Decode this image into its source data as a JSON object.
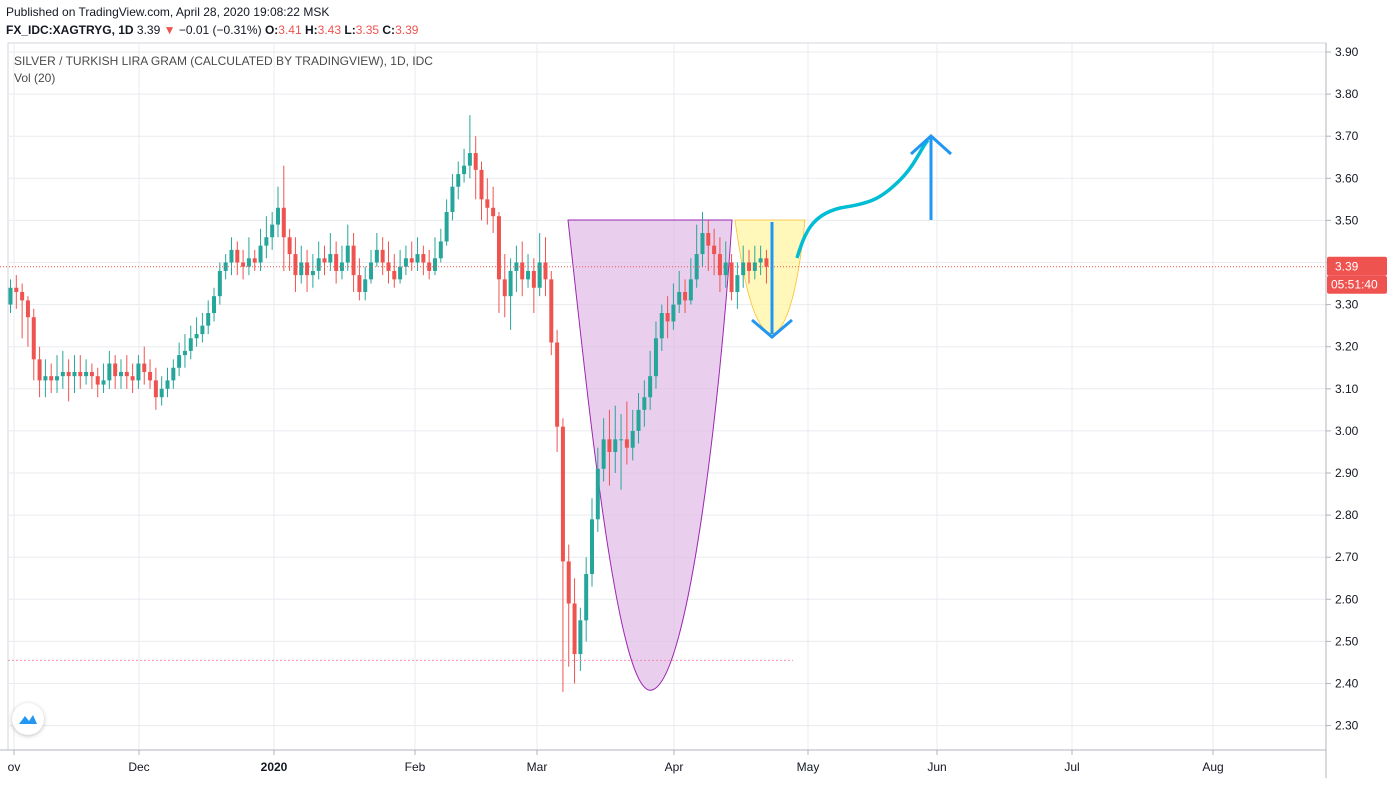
{
  "header": {
    "published": "Published on TradingView.com, April 28, 2020 19:08:22 MSK",
    "symbol": "FX_IDC:XAGTRYG, 1D",
    "last": "3.39",
    "change_arrow": "▼",
    "change": "−0.01 (−0.31%)",
    "o_label": "O:",
    "o_value": "3.41",
    "h_label": "H:",
    "h_value": "3.43",
    "l_label": "L:",
    "l_value": "3.35",
    "c_label": "C:",
    "c_value": "3.39"
  },
  "legend": {
    "title": "SILVER / TURKISH LIRA GRAM (CALCULATED BY TRADINGVIEW), 1D, IDC",
    "indicator": "Vol (20)"
  },
  "colors": {
    "up": "#26a69a",
    "down": "#ef5350",
    "grid": "#e8ebef",
    "cup_fill": "#e1bee7",
    "cup_stroke": "#9c27b0",
    "handle_fill": "#fff59d",
    "arrow_blue": "#2196f3",
    "projection": "#00bcd4",
    "support_line": "#f48fb1",
    "price_line": "#ef5350"
  },
  "chart_data": {
    "type": "candlestick",
    "ylim": [
      2.25,
      3.92
    ],
    "y_ticks": [
      "3.90",
      "3.80",
      "3.70",
      "3.60",
      "3.50",
      "3.40",
      "3.30",
      "3.20",
      "3.10",
      "3.00",
      "2.90",
      "2.80",
      "2.70",
      "2.60",
      "2.50",
      "2.40",
      "2.30"
    ],
    "x_labels": [
      "ov",
      "Dec",
      "2020",
      "Feb",
      "Mar",
      "Apr",
      "May",
      "Jun",
      "Jul",
      "Aug"
    ],
    "last_price_label": "3.39",
    "countdown_label": "05:51:40",
    "last_price": 3.39,
    "support_level": 2.455,
    "candles": [
      [
        3.3,
        3.34,
        3.36,
        3.28
      ],
      [
        3.34,
        3.33,
        3.37,
        3.29
      ],
      [
        3.33,
        3.31,
        3.35,
        3.22
      ],
      [
        3.31,
        3.27,
        3.32,
        3.2
      ],
      [
        3.27,
        3.17,
        3.29,
        3.12
      ],
      [
        3.17,
        3.12,
        3.2,
        3.08
      ],
      [
        3.12,
        3.13,
        3.17,
        3.08
      ],
      [
        3.13,
        3.12,
        3.16,
        3.09
      ],
      [
        3.12,
        3.13,
        3.18,
        3.09
      ],
      [
        3.13,
        3.14,
        3.19,
        3.1
      ],
      [
        3.14,
        3.13,
        3.17,
        3.07
      ],
      [
        3.13,
        3.14,
        3.18,
        3.09
      ],
      [
        3.14,
        3.13,
        3.18,
        3.1
      ],
      [
        3.13,
        3.14,
        3.17,
        3.11
      ],
      [
        3.14,
        3.13,
        3.16,
        3.1
      ],
      [
        3.13,
        3.11,
        3.15,
        3.08
      ],
      [
        3.11,
        3.12,
        3.16,
        3.09
      ],
      [
        3.12,
        3.16,
        3.19,
        3.1
      ],
      [
        3.16,
        3.13,
        3.18,
        3.1
      ],
      [
        3.13,
        3.14,
        3.17,
        3.1
      ],
      [
        3.14,
        3.13,
        3.18,
        3.1
      ],
      [
        3.13,
        3.12,
        3.16,
        3.09
      ],
      [
        3.12,
        3.16,
        3.18,
        3.1
      ],
      [
        3.16,
        3.14,
        3.2,
        3.11
      ],
      [
        3.14,
        3.12,
        3.17,
        3.1
      ],
      [
        3.12,
        3.08,
        3.15,
        3.05
      ],
      [
        3.08,
        3.1,
        3.13,
        3.06
      ],
      [
        3.1,
        3.12,
        3.15,
        3.08
      ],
      [
        3.12,
        3.15,
        3.17,
        3.1
      ],
      [
        3.15,
        3.18,
        3.21,
        3.13
      ],
      [
        3.18,
        3.19,
        3.23,
        3.15
      ],
      [
        3.19,
        3.22,
        3.25,
        3.17
      ],
      [
        3.22,
        3.23,
        3.27,
        3.2
      ],
      [
        3.23,
        3.25,
        3.28,
        3.21
      ],
      [
        3.25,
        3.28,
        3.31,
        3.23
      ],
      [
        3.28,
        3.32,
        3.34,
        3.26
      ],
      [
        3.32,
        3.38,
        3.4,
        3.3
      ],
      [
        3.38,
        3.4,
        3.42,
        3.36
      ],
      [
        3.4,
        3.43,
        3.46,
        3.37
      ],
      [
        3.43,
        3.4,
        3.45,
        3.37
      ],
      [
        3.4,
        3.39,
        3.43,
        3.36
      ],
      [
        3.39,
        3.41,
        3.46,
        3.37
      ],
      [
        3.41,
        3.4,
        3.43,
        3.38
      ],
      [
        3.4,
        3.44,
        3.48,
        3.38
      ],
      [
        3.44,
        3.46,
        3.51,
        3.41
      ],
      [
        3.46,
        3.49,
        3.52,
        3.43
      ],
      [
        3.49,
        3.53,
        3.58,
        3.46
      ],
      [
        3.53,
        3.46,
        3.63,
        3.38
      ],
      [
        3.46,
        3.42,
        3.48,
        3.38
      ],
      [
        3.42,
        3.37,
        3.46,
        3.33
      ],
      [
        3.37,
        3.4,
        3.44,
        3.35
      ],
      [
        3.4,
        3.37,
        3.43,
        3.33
      ],
      [
        3.37,
        3.38,
        3.42,
        3.34
      ],
      [
        3.38,
        3.41,
        3.45,
        3.36
      ],
      [
        3.41,
        3.4,
        3.44,
        3.37
      ],
      [
        3.4,
        3.42,
        3.47,
        3.38
      ],
      [
        3.42,
        3.38,
        3.45,
        3.35
      ],
      [
        3.38,
        3.4,
        3.44,
        3.36
      ],
      [
        3.4,
        3.44,
        3.49,
        3.38
      ],
      [
        3.44,
        3.37,
        3.47,
        3.33
      ],
      [
        3.37,
        3.33,
        3.41,
        3.31
      ],
      [
        3.33,
        3.36,
        3.39,
        3.31
      ],
      [
        3.36,
        3.4,
        3.43,
        3.35
      ],
      [
        3.4,
        3.43,
        3.47,
        3.39
      ],
      [
        3.43,
        3.4,
        3.46,
        3.37
      ],
      [
        3.4,
        3.38,
        3.45,
        3.35
      ],
      [
        3.38,
        3.36,
        3.42,
        3.34
      ],
      [
        3.36,
        3.39,
        3.43,
        3.35
      ],
      [
        3.39,
        3.41,
        3.44,
        3.37
      ],
      [
        3.41,
        3.4,
        3.45,
        3.38
      ],
      [
        3.4,
        3.42,
        3.46,
        3.38
      ],
      [
        3.42,
        3.4,
        3.44,
        3.37
      ],
      [
        3.4,
        3.38,
        3.43,
        3.36
      ],
      [
        3.38,
        3.41,
        3.46,
        3.37
      ],
      [
        3.41,
        3.45,
        3.48,
        3.4
      ],
      [
        3.45,
        3.52,
        3.55,
        3.44
      ],
      [
        3.52,
        3.58,
        3.61,
        3.5
      ],
      [
        3.58,
        3.61,
        3.64,
        3.55
      ],
      [
        3.61,
        3.63,
        3.67,
        3.59
      ],
      [
        3.63,
        3.66,
        3.75,
        3.6
      ],
      [
        3.66,
        3.62,
        3.7,
        3.55
      ],
      [
        3.62,
        3.55,
        3.64,
        3.5
      ],
      [
        3.55,
        3.53,
        3.6,
        3.49
      ],
      [
        3.53,
        3.51,
        3.58,
        3.47
      ],
      [
        3.51,
        3.36,
        3.52,
        3.28
      ],
      [
        3.36,
        3.32,
        3.42,
        3.27
      ],
      [
        3.32,
        3.38,
        3.41,
        3.24
      ],
      [
        3.38,
        3.4,
        3.44,
        3.33
      ],
      [
        3.4,
        3.36,
        3.45,
        3.32
      ],
      [
        3.36,
        3.38,
        3.42,
        3.34
      ],
      [
        3.38,
        3.34,
        3.41,
        3.28
      ],
      [
        3.34,
        3.4,
        3.47,
        3.32
      ],
      [
        3.4,
        3.36,
        3.46,
        3.32
      ],
      [
        3.36,
        3.21,
        3.38,
        3.18
      ],
      [
        3.21,
        3.01,
        3.24,
        2.95
      ],
      [
        3.01,
        2.69,
        3.03,
        2.38
      ],
      [
        2.69,
        2.59,
        2.73,
        2.44
      ],
      [
        2.59,
        2.47,
        2.65,
        2.4
      ],
      [
        2.47,
        2.55,
        2.58,
        2.43
      ],
      [
        2.55,
        2.66,
        2.7,
        2.5
      ],
      [
        2.66,
        2.79,
        2.84,
        2.63
      ],
      [
        2.79,
        2.91,
        2.96,
        2.76
      ],
      [
        2.91,
        2.98,
        3.03,
        2.88
      ],
      [
        2.98,
        2.95,
        3.05,
        2.87
      ],
      [
        2.95,
        2.98,
        3.06,
        2.9
      ],
      [
        2.98,
        2.98,
        3.04,
        2.86
      ],
      [
        2.98,
        2.96,
        3.07,
        2.92
      ],
      [
        2.96,
        3.0,
        3.05,
        2.93
      ],
      [
        3.0,
        3.05,
        3.09,
        2.97
      ],
      [
        3.05,
        3.08,
        3.12,
        3.01
      ],
      [
        3.08,
        3.13,
        3.19,
        3.05
      ],
      [
        3.13,
        3.22,
        3.26,
        3.1
      ],
      [
        3.22,
        3.28,
        3.3,
        3.19
      ],
      [
        3.28,
        3.26,
        3.32,
        3.22
      ],
      [
        3.26,
        3.3,
        3.35,
        3.24
      ],
      [
        3.3,
        3.33,
        3.38,
        3.28
      ],
      [
        3.33,
        3.31,
        3.36,
        3.28
      ],
      [
        3.31,
        3.36,
        3.41,
        3.3
      ],
      [
        3.36,
        3.42,
        3.49,
        3.34
      ],
      [
        3.42,
        3.47,
        3.52,
        3.39
      ],
      [
        3.47,
        3.44,
        3.5,
        3.38
      ],
      [
        3.44,
        3.42,
        3.48,
        3.37
      ],
      [
        3.42,
        3.37,
        3.46,
        3.33
      ],
      [
        3.37,
        3.4,
        3.45,
        3.34
      ],
      [
        3.4,
        3.33,
        3.42,
        3.31
      ],
      [
        3.33,
        3.37,
        3.4,
        3.29
      ],
      [
        3.37,
        3.4,
        3.44,
        3.34
      ],
      [
        3.4,
        3.38,
        3.43,
        3.35
      ],
      [
        3.38,
        3.4,
        3.44,
        3.36
      ],
      [
        3.4,
        3.41,
        3.44,
        3.37
      ],
      [
        3.41,
        3.39,
        3.43,
        3.35
      ]
    ]
  }
}
